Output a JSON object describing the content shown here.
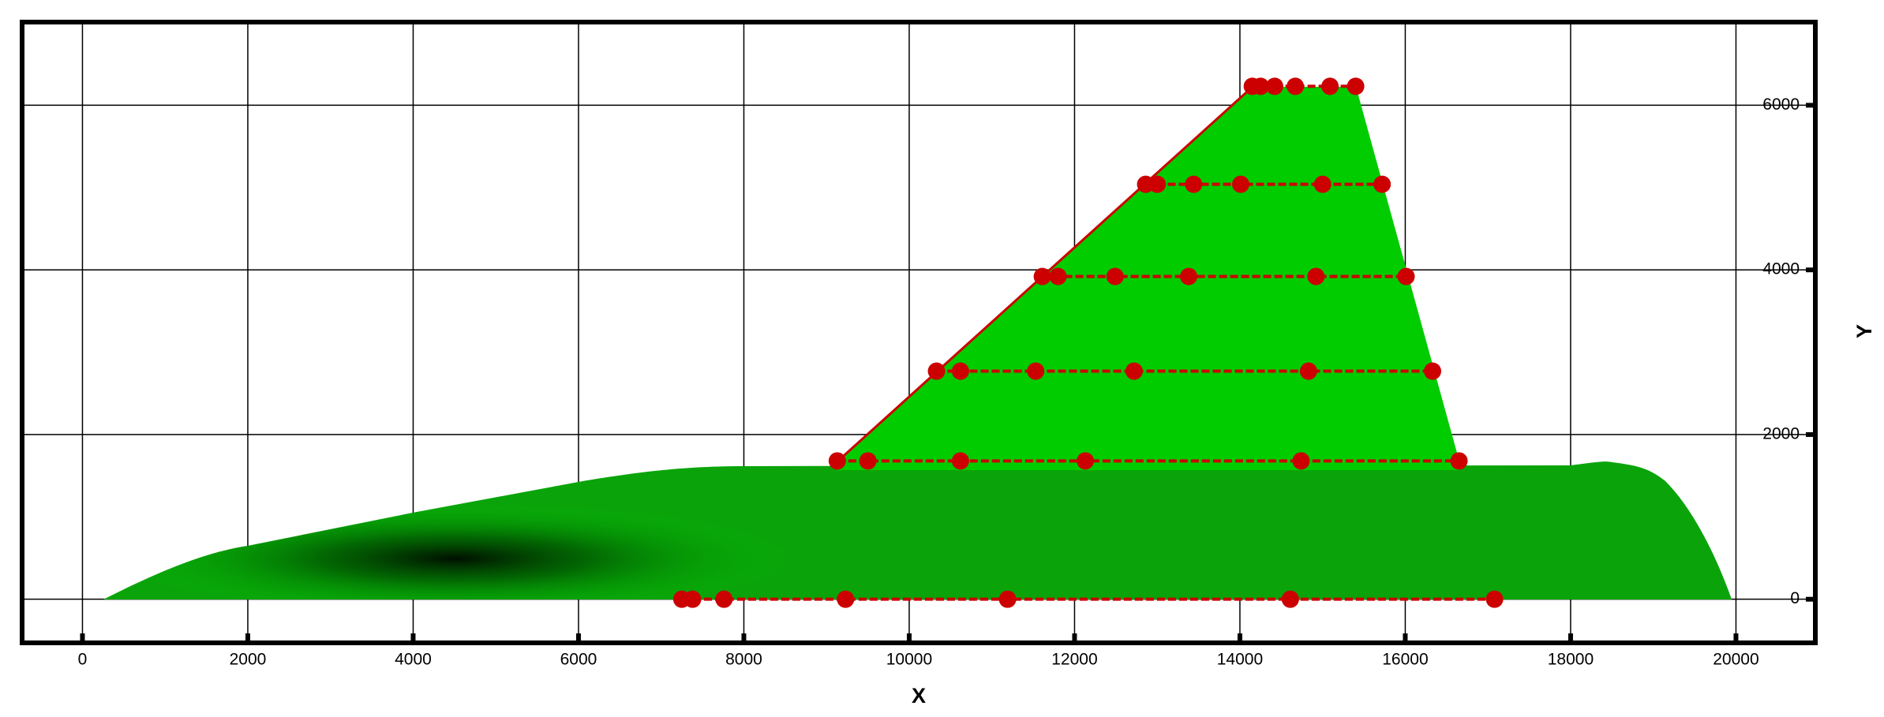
{
  "chart_data": {
    "type": "scatter",
    "x_label": "X",
    "y_label": "Y",
    "xlim": [
      -730,
      20960
    ],
    "ylim": [
      -530,
      7010
    ],
    "xticks": [
      0,
      2000,
      4000,
      6000,
      8000,
      10000,
      12000,
      14000,
      16000,
      18000,
      20000
    ],
    "yticks": [
      0,
      2000,
      4000,
      6000
    ],
    "grid": true,
    "series": [
      {
        "color": "#cc0000",
        "x": [
          9130,
          9500,
          10620,
          12130,
          14740,
          16650
        ],
        "y": [
          1680,
          1680,
          1680,
          1680,
          1680,
          1680
        ]
      },
      {
        "color": "#cc0000",
        "x": [
          10330,
          10620,
          11530,
          12720,
          14830,
          16330
        ],
        "y": [
          2770,
          2770,
          2770,
          2770,
          2770,
          2770
        ]
      },
      {
        "color": "#cc0000",
        "x": [
          11610,
          11800,
          12490,
          13380,
          14920,
          16010
        ],
        "y": [
          3920,
          3920,
          3920,
          3920,
          3920,
          3920
        ]
      },
      {
        "color": "#cc0000",
        "x": [
          12860,
          13000,
          13440,
          14010,
          15000,
          15720
        ],
        "y": [
          5040,
          5040,
          5040,
          5040,
          5040,
          5040
        ]
      },
      {
        "color": "#cc0000",
        "x": [
          14150,
          14250,
          14420,
          14670,
          15090,
          15400
        ],
        "y": [
          6230,
          6230,
          6230,
          6230,
          6230,
          6230
        ]
      },
      {
        "color": "#cc0000",
        "x": [
          7250,
          7380,
          7760,
          9230,
          11190,
          14610,
          17080
        ],
        "y": [
          0,
          0,
          0,
          0,
          0,
          0,
          0
        ]
      }
    ]
  }
}
